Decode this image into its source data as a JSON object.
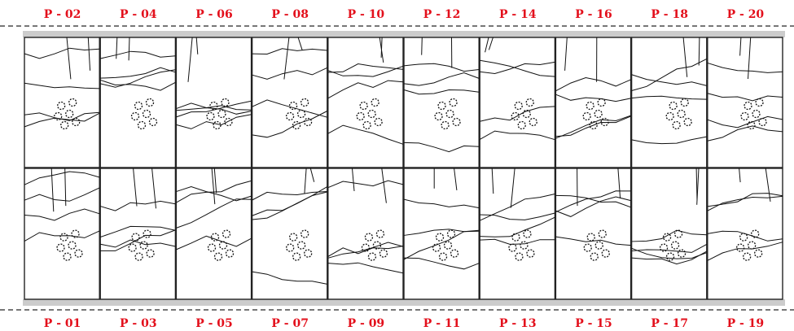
{
  "top_labels": [
    "P - 02",
    "P - 04",
    "P - 06",
    "P - 08",
    "P - 10",
    "P - 12",
    "P - 14",
    "P - 16",
    "P - 18",
    "P - 20"
  ],
  "bottom_labels": [
    "P - 01",
    "P - 03",
    "P - 05",
    "P - 07",
    "P - 09",
    "P - 11",
    "P - 13",
    "P - 15",
    "P - 17",
    "P - 19"
  ]
}
